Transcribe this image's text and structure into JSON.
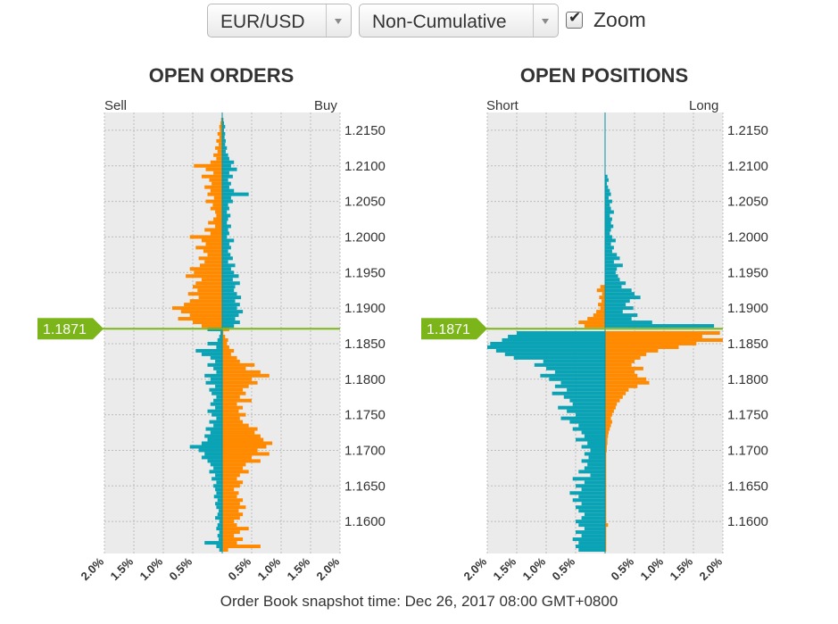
{
  "controls": {
    "pair": {
      "label": "EUR/USD"
    },
    "mode": {
      "label": "Non-Cumulative"
    },
    "zoom": {
      "label": "Zoom",
      "checked": true
    }
  },
  "colors": {
    "orange": "#ff8a00",
    "teal": "#0aa3b5",
    "price_line": "#7cb51a",
    "plot_bg": "#ebebeb"
  },
  "footer": "Order Book snapshot time: Dec 26, 2017 08:00 GMT+0800",
  "chart_data": [
    {
      "type": "bar",
      "orientation": "horizontal",
      "title": "OPEN ORDERS",
      "left_label": "Sell",
      "right_label": "Buy",
      "current_price": "1.1871",
      "y_ticks": [
        "1.2150",
        "1.2100",
        "1.2050",
        "1.2000",
        "1.1950",
        "1.1900",
        "1.1850",
        "1.1800",
        "1.1750",
        "1.1700",
        "1.1650",
        "1.1600"
      ],
      "x_ticks": [
        "2.0%",
        "1.5%",
        "1.0%",
        "0.5%",
        "0.5%",
        "1.0%",
        "1.5%",
        "2.0%"
      ],
      "xlim": [
        -2.0,
        2.0
      ],
      "ylim": [
        1.1555,
        1.2175
      ],
      "bin_size": 0.0005,
      "price_levels": [
        1.2165,
        1.216,
        1.2155,
        1.215,
        1.2145,
        1.214,
        1.2135,
        1.213,
        1.2125,
        1.212,
        1.2115,
        1.211,
        1.2105,
        1.21,
        1.2095,
        1.209,
        1.2085,
        1.208,
        1.2075,
        1.207,
        1.2065,
        1.206,
        1.2055,
        1.205,
        1.2045,
        1.204,
        1.2035,
        1.203,
        1.2025,
        1.202,
        1.2015,
        1.201,
        1.2005,
        1.2,
        1.1995,
        1.199,
        1.1985,
        1.198,
        1.1975,
        1.197,
        1.1965,
        1.196,
        1.1955,
        1.195,
        1.1945,
        1.194,
        1.1935,
        1.193,
        1.1925,
        1.192,
        1.1915,
        1.191,
        1.1905,
        1.19,
        1.1895,
        1.189,
        1.1885,
        1.188,
        1.1875,
        1.187,
        1.1865,
        1.186,
        1.1855,
        1.185,
        1.1845,
        1.184,
        1.1835,
        1.183,
        1.1825,
        1.182,
        1.1815,
        1.181,
        1.1805,
        1.18,
        1.1795,
        1.179,
        1.1785,
        1.178,
        1.1775,
        1.177,
        1.1765,
        1.176,
        1.1755,
        1.175,
        1.1745,
        1.174,
        1.1735,
        1.173,
        1.1725,
        1.172,
        1.1715,
        1.171,
        1.1705,
        1.17,
        1.1695,
        1.169,
        1.1685,
        1.168,
        1.1675,
        1.167,
        1.1665,
        1.166,
        1.1655,
        1.165,
        1.1645,
        1.164,
        1.1635,
        1.163,
        1.1625,
        1.162,
        1.1615,
        1.161,
        1.1605,
        1.16,
        1.1595,
        1.159,
        1.1585,
        1.158,
        1.1575,
        1.157,
        1.1565,
        1.156
      ],
      "series": [
        {
          "name": "Sell",
          "values": [
            0.02,
            0.03,
            0.05,
            0.04,
            0.08,
            0.05,
            0.1,
            0.06,
            0.12,
            0.08,
            0.15,
            0.1,
            0.2,
            0.48,
            0.28,
            0.15,
            0.35,
            0.22,
            0.18,
            0.3,
            0.2,
            0.25,
            0.14,
            0.28,
            0.16,
            0.2,
            0.12,
            0.1,
            0.15,
            0.24,
            0.12,
            0.3,
            0.2,
            0.55,
            0.35,
            0.28,
            0.45,
            0.32,
            0.25,
            0.4,
            0.3,
            0.38,
            0.55,
            0.48,
            0.62,
            0.35,
            0.45,
            0.5,
            0.42,
            0.58,
            0.4,
            0.55,
            0.65,
            0.85,
            0.7,
            0.55,
            0.75,
            0.5,
            0.35,
            0.25,
            0.03,
            0.05,
            0.08,
            0.25,
            0.1,
            0.45,
            0.35,
            0.2,
            0.12,
            0.25,
            0.15,
            0.1,
            0.3,
            0.2,
            0.28,
            0.12,
            0.22,
            0.18,
            0.1,
            0.15,
            0.2,
            0.12,
            0.25,
            0.18,
            0.1,
            0.22,
            0.15,
            0.28,
            0.2,
            0.3,
            0.25,
            0.35,
            0.55,
            0.4,
            0.3,
            0.35,
            0.25,
            0.2,
            0.15,
            0.22,
            0.12,
            0.18,
            0.1,
            0.15,
            0.12,
            0.1,
            0.14,
            0.08,
            0.12,
            0.1,
            0.06,
            0.08,
            0.12,
            0.05,
            0.08,
            0.1,
            0.05,
            0.08,
            0.06,
            0.3,
            0.1,
            0.05
          ]
        },
        {
          "name": "Buy",
          "values": [
            0.02,
            0.03,
            0.05,
            0.03,
            0.05,
            0.04,
            0.06,
            0.05,
            0.08,
            0.06,
            0.1,
            0.12,
            0.2,
            0.15,
            0.25,
            0.12,
            0.18,
            0.1,
            0.15,
            0.12,
            0.2,
            0.45,
            0.15,
            0.18,
            0.1,
            0.12,
            0.08,
            0.14,
            0.1,
            0.08,
            0.15,
            0.1,
            0.12,
            0.08,
            0.2,
            0.12,
            0.15,
            0.1,
            0.14,
            0.18,
            0.1,
            0.22,
            0.15,
            0.2,
            0.28,
            0.18,
            0.3,
            0.22,
            0.2,
            0.25,
            0.32,
            0.22,
            0.3,
            0.25,
            0.35,
            0.28,
            0.22,
            0.3,
            0.2,
            0.12,
            0.02,
            0.05,
            0.1,
            0.08,
            0.12,
            0.2,
            0.15,
            0.25,
            0.3,
            0.55,
            0.4,
            0.65,
            0.8,
            0.5,
            0.6,
            0.45,
            0.35,
            0.4,
            0.3,
            0.5,
            0.25,
            0.35,
            0.28,
            0.4,
            0.3,
            0.35,
            0.45,
            0.6,
            0.55,
            0.65,
            0.7,
            0.85,
            0.75,
            0.6,
            0.8,
            0.5,
            0.65,
            0.4,
            0.35,
            0.45,
            0.3,
            0.25,
            0.35,
            0.3,
            0.2,
            0.28,
            0.25,
            0.35,
            0.3,
            0.4,
            0.28,
            0.35,
            0.3,
            0.2,
            0.25,
            0.45,
            0.3,
            0.2,
            0.35,
            0.25,
            0.65,
            0.1
          ]
        }
      ]
    },
    {
      "type": "bar",
      "orientation": "horizontal",
      "title": "OPEN POSITIONS",
      "left_label": "Short",
      "right_label": "Long",
      "current_price": "1.1871",
      "y_ticks": [
        "1.2150",
        "1.2100",
        "1.2050",
        "1.2000",
        "1.1950",
        "1.1900",
        "1.1850",
        "1.1800",
        "1.1750",
        "1.1700",
        "1.1650",
        "1.1600"
      ],
      "x_ticks": [
        "2.0%",
        "1.5%",
        "1.0%",
        "0.5%",
        "0.5%",
        "1.0%",
        "1.5%",
        "2.0%"
      ],
      "xlim": [
        -2.0,
        2.0
      ],
      "ylim": [
        1.1555,
        1.2175
      ],
      "bin_size": 0.0005,
      "price_levels": [
        1.2085,
        1.208,
        1.2075,
        1.207,
        1.2065,
        1.206,
        1.2055,
        1.205,
        1.2045,
        1.204,
        1.2035,
        1.203,
        1.2025,
        1.202,
        1.2015,
        1.201,
        1.2005,
        1.2,
        1.1995,
        1.199,
        1.1985,
        1.198,
        1.1975,
        1.197,
        1.1965,
        1.196,
        1.1955,
        1.195,
        1.1945,
        1.194,
        1.1935,
        1.193,
        1.1925,
        1.192,
        1.1915,
        1.191,
        1.1905,
        1.19,
        1.1895,
        1.189,
        1.1885,
        1.188,
        1.1875,
        1.187,
        1.1865,
        1.186,
        1.1855,
        1.185,
        1.1845,
        1.184,
        1.1835,
        1.183,
        1.1825,
        1.182,
        1.1815,
        1.181,
        1.1805,
        1.18,
        1.1795,
        1.179,
        1.1785,
        1.178,
        1.1775,
        1.177,
        1.1765,
        1.176,
        1.1755,
        1.175,
        1.1745,
        1.174,
        1.1735,
        1.173,
        1.1725,
        1.172,
        1.1715,
        1.171,
        1.1705,
        1.17,
        1.1695,
        1.169,
        1.1685,
        1.168,
        1.1675,
        1.167,
        1.1665,
        1.166,
        1.1655,
        1.165,
        1.1645,
        1.164,
        1.1635,
        1.163,
        1.1625,
        1.162,
        1.1615,
        1.161,
        1.1605,
        1.16,
        1.1595,
        1.159,
        1.1585,
        1.158,
        1.1575,
        1.157,
        1.1565,
        1.156
      ],
      "series": [
        {
          "name": "Short",
          "values": [
            0.0,
            0.0,
            0.0,
            0.0,
            0.0,
            0.0,
            0.0,
            0.0,
            0.0,
            0.0,
            0.0,
            0.0,
            0.0,
            0.0,
            0.0,
            0.0,
            0.0,
            0.0,
            0.0,
            0.0,
            0.0,
            0.0,
            0.0,
            0.0,
            0.0,
            0.0,
            0.0,
            0.0,
            0.0,
            0.0,
            0.0,
            0.08,
            0.14,
            0.05,
            0.1,
            0.06,
            0.12,
            0.08,
            0.15,
            0.2,
            0.3,
            0.45,
            0.35,
            0.0,
            1.5,
            1.65,
            1.75,
            1.95,
            2.0,
            1.85,
            1.7,
            1.55,
            1.05,
            1.2,
            1.0,
            0.85,
            1.1,
            0.95,
            0.75,
            0.85,
            0.65,
            0.9,
            0.7,
            0.6,
            0.55,
            0.8,
            0.65,
            0.5,
            0.75,
            0.6,
            0.45,
            0.55,
            0.4,
            0.35,
            0.5,
            0.3,
            0.4,
            0.25,
            0.35,
            0.28,
            0.4,
            0.3,
            0.35,
            0.45,
            0.25,
            0.55,
            0.35,
            0.5,
            0.4,
            0.6,
            0.45,
            0.55,
            0.4,
            0.5,
            0.45,
            0.35,
            0.4,
            0.5,
            0.45,
            0.35,
            0.5,
            0.4,
            0.55,
            0.45,
            0.5,
            0.45
          ]
        },
        {
          "name": "Long",
          "values": [
            0.04,
            0.06,
            0.03,
            0.05,
            0.08,
            0.1,
            0.06,
            0.12,
            0.08,
            0.1,
            0.15,
            0.08,
            0.12,
            0.1,
            0.14,
            0.1,
            0.08,
            0.12,
            0.18,
            0.1,
            0.15,
            0.12,
            0.2,
            0.25,
            0.15,
            0.3,
            0.2,
            0.18,
            0.22,
            0.25,
            0.35,
            0.28,
            0.45,
            0.5,
            0.6,
            0.42,
            0.35,
            0.48,
            0.3,
            0.55,
            0.45,
            0.8,
            1.85,
            0.0,
            1.95,
            1.65,
            2.0,
            1.55,
            1.25,
            0.9,
            0.7,
            0.6,
            0.5,
            0.45,
            0.65,
            0.5,
            0.55,
            0.7,
            0.75,
            0.55,
            0.4,
            0.35,
            0.3,
            0.25,
            0.2,
            0.18,
            0.15,
            0.12,
            0.1,
            0.12,
            0.1,
            0.08,
            0.06,
            0.05,
            0.04,
            0.04,
            0.03,
            0.03,
            0.02,
            0.02,
            0.02,
            0.02,
            0.02,
            0.02,
            0.02,
            0.02,
            0.02,
            0.02,
            0.02,
            0.02,
            0.02,
            0.02,
            0.02,
            0.02,
            0.02,
            0.02,
            0.02,
            0.02,
            0.05,
            0.02,
            0.02,
            0.02,
            0.02,
            0.02,
            0.02,
            0.02
          ]
        }
      ]
    }
  ]
}
